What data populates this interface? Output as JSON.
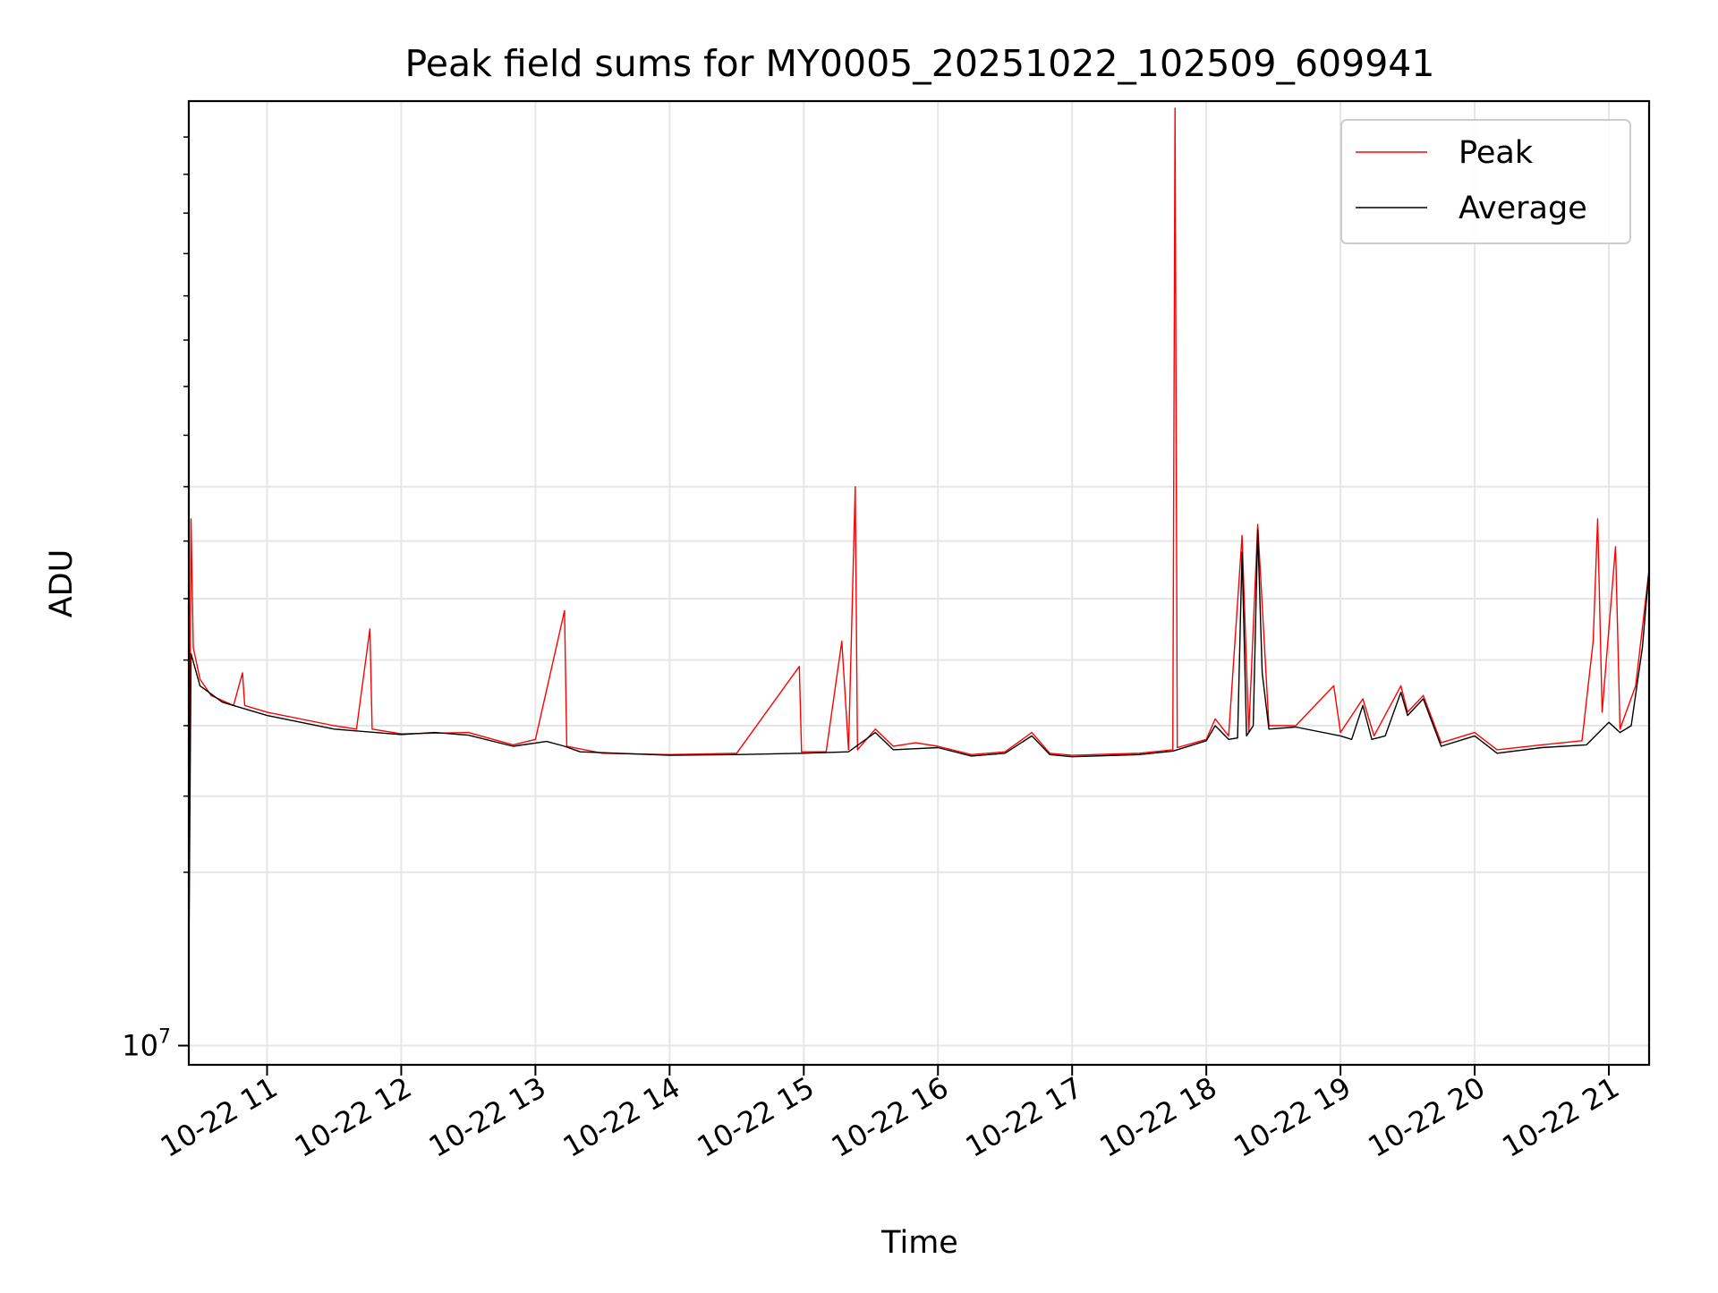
{
  "chart_data": {
    "type": "line",
    "title": "Peak field sums for MY0005_20251022_102509_609941",
    "xlabel": "Time",
    "ylabel": "ADU",
    "y_scale": "log",
    "grid": true,
    "legend_position": "top-right",
    "xlim": [
      "2025-10-22 10:25",
      "2025-10-22 21:18"
    ],
    "ylim": [
      9800000,
      27000000
    ],
    "x_ticks": [
      {
        "t": "2025-10-22 11:00",
        "label": "10-22 11"
      },
      {
        "t": "2025-10-22 12:00",
        "label": "10-22 12"
      },
      {
        "t": "2025-10-22 13:00",
        "label": "10-22 13"
      },
      {
        "t": "2025-10-22 14:00",
        "label": "10-22 14"
      },
      {
        "t": "2025-10-22 15:00",
        "label": "10-22 15"
      },
      {
        "t": "2025-10-22 16:00",
        "label": "10-22 16"
      },
      {
        "t": "2025-10-22 17:00",
        "label": "10-22 17"
      },
      {
        "t": "2025-10-22 18:00",
        "label": "10-22 18"
      },
      {
        "t": "2025-10-22 19:00",
        "label": "10-22 19"
      },
      {
        "t": "2025-10-22 20:00",
        "label": "10-22 20"
      },
      {
        "t": "2025-10-22 21:00",
        "label": "10-22 21"
      }
    ],
    "y_major_ticks": [
      {
        "value": 10000000,
        "base": "10",
        "exp": "7"
      }
    ],
    "y_minor_ticks": [
      10000000,
      12000000,
      13000000,
      14000000,
      15000000,
      16000000,
      17000000,
      18000000
    ],
    "series": [
      {
        "name": "Peak",
        "color": "#ff0000",
        "points": [
          [
            "2025-10-22 10:25",
            10900000
          ],
          [
            "2025-10-22 10:26",
            17400000
          ],
          [
            "2025-10-22 10:27",
            15200000
          ],
          [
            "2025-10-22 10:30",
            14700000
          ],
          [
            "2025-10-22 10:35",
            14450000
          ],
          [
            "2025-10-22 10:45",
            14300000
          ],
          [
            "2025-10-22 10:49",
            14800000
          ],
          [
            "2025-10-22 10:50",
            14300000
          ],
          [
            "2025-10-22 11:00",
            14200000
          ],
          [
            "2025-10-22 11:30",
            14000000
          ],
          [
            "2025-10-22 11:40",
            13950000
          ],
          [
            "2025-10-22 11:46",
            15500000
          ],
          [
            "2025-10-22 11:47",
            13950000
          ],
          [
            "2025-10-22 12:00",
            13880000
          ],
          [
            "2025-10-22 12:30",
            13900000
          ],
          [
            "2025-10-22 12:50",
            13720000
          ],
          [
            "2025-10-22 13:00",
            13800000
          ],
          [
            "2025-10-22 13:13",
            15800000
          ],
          [
            "2025-10-22 13:14",
            13700000
          ],
          [
            "2025-10-22 13:30",
            13600000
          ],
          [
            "2025-10-22 14:00",
            13580000
          ],
          [
            "2025-10-22 14:30",
            13600000
          ],
          [
            "2025-10-22 14:58",
            14900000
          ],
          [
            "2025-10-22 14:59",
            13620000
          ],
          [
            "2025-10-22 15:10",
            13620000
          ],
          [
            "2025-10-22 15:17",
            15300000
          ],
          [
            "2025-10-22 15:20",
            13650000
          ],
          [
            "2025-10-22 15:23",
            18000000
          ],
          [
            "2025-10-22 15:24",
            13650000
          ],
          [
            "2025-10-22 15:32",
            13950000
          ],
          [
            "2025-10-22 15:40",
            13700000
          ],
          [
            "2025-10-22 15:50",
            13750000
          ],
          [
            "2025-10-22 16:00",
            13700000
          ],
          [
            "2025-10-22 16:15",
            13580000
          ],
          [
            "2025-10-22 16:30",
            13620000
          ],
          [
            "2025-10-22 16:42",
            13900000
          ],
          [
            "2025-10-22 16:50",
            13600000
          ],
          [
            "2025-10-22 17:00",
            13570000
          ],
          [
            "2025-10-22 17:30",
            13600000
          ],
          [
            "2025-10-22 17:45",
            13650000
          ],
          [
            "2025-10-22 17:46",
            26800000
          ],
          [
            "2025-10-22 17:47",
            13680000
          ],
          [
            "2025-10-22 18:00",
            13800000
          ],
          [
            "2025-10-22 18:04",
            14100000
          ],
          [
            "2025-10-22 18:10",
            13850000
          ],
          [
            "2025-10-22 18:16",
            17100000
          ],
          [
            "2025-10-22 18:19",
            13900000
          ],
          [
            "2025-10-22 18:23",
            17300000
          ],
          [
            "2025-10-22 18:28",
            14000000
          ],
          [
            "2025-10-22 18:40",
            14000000
          ],
          [
            "2025-10-22 18:57",
            14600000
          ],
          [
            "2025-10-22 19:00",
            13900000
          ],
          [
            "2025-10-22 19:10",
            14400000
          ],
          [
            "2025-10-22 19:15",
            13850000
          ],
          [
            "2025-10-22 19:27",
            14600000
          ],
          [
            "2025-10-22 19:30",
            14200000
          ],
          [
            "2025-10-22 19:37",
            14450000
          ],
          [
            "2025-10-22 19:45",
            13750000
          ],
          [
            "2025-10-22 20:00",
            13900000
          ],
          [
            "2025-10-22 20:10",
            13650000
          ],
          [
            "2025-10-22 20:30",
            13720000
          ],
          [
            "2025-10-22 20:48",
            13780000
          ],
          [
            "2025-10-22 20:53",
            15300000
          ],
          [
            "2025-10-22 20:55",
            17400000
          ],
          [
            "2025-10-22 20:57",
            14200000
          ],
          [
            "2025-10-22 21:03",
            16900000
          ],
          [
            "2025-10-22 21:05",
            13950000
          ],
          [
            "2025-10-22 21:12",
            14600000
          ],
          [
            "2025-10-22 21:18",
            16500000
          ]
        ]
      },
      {
        "name": "Average",
        "color": "#000000",
        "points": [
          [
            "2025-10-22 10:25",
            10900000
          ],
          [
            "2025-10-22 10:26",
            15100000
          ],
          [
            "2025-10-22 10:30",
            14600000
          ],
          [
            "2025-10-22 10:40",
            14350000
          ],
          [
            "2025-10-22 11:00",
            14150000
          ],
          [
            "2025-10-22 11:30",
            13950000
          ],
          [
            "2025-10-22 12:00",
            13870000
          ],
          [
            "2025-10-22 12:15",
            13900000
          ],
          [
            "2025-10-22 12:30",
            13860000
          ],
          [
            "2025-10-22 12:50",
            13700000
          ],
          [
            "2025-10-22 13:05",
            13770000
          ],
          [
            "2025-10-22 13:13",
            13700000
          ],
          [
            "2025-10-22 13:20",
            13620000
          ],
          [
            "2025-10-22 14:00",
            13570000
          ],
          [
            "2025-10-22 14:30",
            13580000
          ],
          [
            "2025-10-22 15:00",
            13600000
          ],
          [
            "2025-10-22 15:20",
            13620000
          ],
          [
            "2025-10-22 15:32",
            13900000
          ],
          [
            "2025-10-22 15:40",
            13650000
          ],
          [
            "2025-10-22 16:00",
            13680000
          ],
          [
            "2025-10-22 16:15",
            13560000
          ],
          [
            "2025-10-22 16:30",
            13600000
          ],
          [
            "2025-10-22 16:42",
            13850000
          ],
          [
            "2025-10-22 16:50",
            13580000
          ],
          [
            "2025-10-22 17:00",
            13550000
          ],
          [
            "2025-10-22 17:30",
            13580000
          ],
          [
            "2025-10-22 17:45",
            13630000
          ],
          [
            "2025-10-22 18:00",
            13780000
          ],
          [
            "2025-10-22 18:04",
            14000000
          ],
          [
            "2025-10-22 18:10",
            13800000
          ],
          [
            "2025-10-22 18:14",
            13820000
          ],
          [
            "2025-10-22 18:16",
            16800000
          ],
          [
            "2025-10-22 18:18",
            13850000
          ],
          [
            "2025-10-22 18:21",
            14000000
          ],
          [
            "2025-10-22 18:23",
            17200000
          ],
          [
            "2025-10-22 18:25",
            14800000
          ],
          [
            "2025-10-22 18:28",
            13950000
          ],
          [
            "2025-10-22 18:40",
            13980000
          ],
          [
            "2025-10-22 19:00",
            13850000
          ],
          [
            "2025-10-22 19:05",
            13800000
          ],
          [
            "2025-10-22 19:10",
            14300000
          ],
          [
            "2025-10-22 19:14",
            13800000
          ],
          [
            "2025-10-22 19:20",
            13850000
          ],
          [
            "2025-10-22 19:27",
            14500000
          ],
          [
            "2025-10-22 19:30",
            14150000
          ],
          [
            "2025-10-22 19:37",
            14400000
          ],
          [
            "2025-10-22 19:45",
            13700000
          ],
          [
            "2025-10-22 19:55",
            13800000
          ],
          [
            "2025-10-22 20:00",
            13850000
          ],
          [
            "2025-10-22 20:10",
            13600000
          ],
          [
            "2025-10-22 20:30",
            13680000
          ],
          [
            "2025-10-22 20:50",
            13720000
          ],
          [
            "2025-10-22 21:00",
            14050000
          ],
          [
            "2025-10-22 21:05",
            13900000
          ],
          [
            "2025-10-22 21:10",
            14000000
          ],
          [
            "2025-10-22 21:15",
            15200000
          ],
          [
            "2025-10-22 21:18",
            16500000
          ]
        ]
      }
    ]
  }
}
